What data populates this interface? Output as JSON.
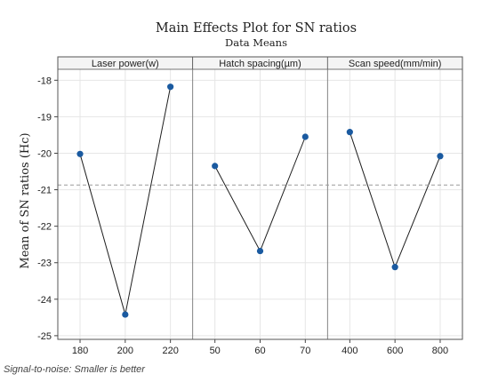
{
  "chart_data": {
    "type": "line",
    "title": "Main Effects Plot for SN ratios",
    "subtitle": "Data Means",
    "ylabel": "Mean of SN ratios (Hc)",
    "ylim": [
      -25.1,
      -17.7
    ],
    "yticks": [
      -18,
      -19,
      -20,
      -21,
      -22,
      -23,
      -24,
      -25
    ],
    "reference_line": -20.87,
    "grid": true,
    "panels": [
      {
        "name": "Laser power(w)",
        "x": [
          "180",
          "200",
          "220"
        ],
        "values": [
          -20.02,
          -24.42,
          -18.18
        ]
      },
      {
        "name": "Hatch spacing(µm)",
        "x": [
          "50",
          "60",
          "70"
        ],
        "values": [
          -20.35,
          -22.68,
          -19.55
        ]
      },
      {
        "name": "Scan speed(mm/min)",
        "x": [
          "400",
          "600",
          "800"
        ],
        "values": [
          -19.42,
          -23.12,
          -20.08
        ]
      }
    ]
  },
  "footnote": "Signal-to-noise: Smaller is better",
  "colors": {
    "point": "#1a5aa0",
    "line": "#1e1e1e",
    "reference": "#9a9a9a",
    "grid": "#e6e6e6",
    "strip": "#f4f4f4"
  }
}
